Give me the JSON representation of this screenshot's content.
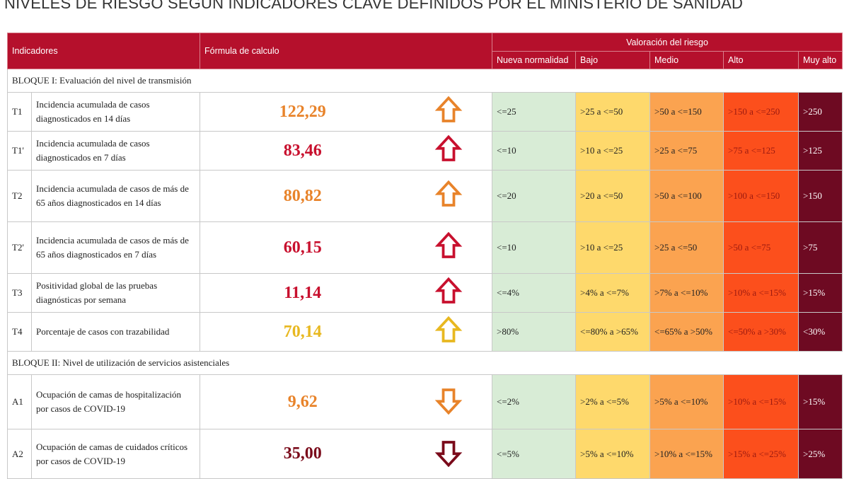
{
  "title": "NIVELES DE RIESGO SEGÚN INDICADORES CLAVE DEFINIDOS POR EL MINISTERIO DE SANIDAD",
  "header": {
    "indicadores": "Indicadores",
    "formula": "Fórmula de calculo",
    "valoracion": "Valoración del riesgo",
    "levels": [
      "Nueva normalidad",
      "Bajo",
      "Medio",
      "Alto",
      "Muy alto"
    ]
  },
  "level_colors": [
    "#d8ecd6",
    "#fed96c",
    "#fba350",
    "#fc4f1c",
    "#6e0a22"
  ],
  "blocks": [
    {
      "title": "BLOQUE I: Evaluación del nivel de transmisión",
      "rows": [
        {
          "code": "T1",
          "name": "Incidencia acumulada de casos diagnosticados en 14 días",
          "value": "122,29",
          "color": "#e8832a",
          "arrow": "up",
          "ranges": [
            "<=25",
            ">25 a <=50",
            ">50 a <=150",
            ">150 a <=250",
            ">250"
          ]
        },
        {
          "code": "T1'",
          "name": "Incidencia acumulada de casos diagnosticados en 7 días",
          "value": "83,46",
          "color": "#c8102e",
          "arrow": "up",
          "ranges": [
            "<=10",
            ">10 a <=25",
            ">25 a <=75",
            ">75 a <=125",
            ">125"
          ]
        },
        {
          "code": "T2",
          "name": "Incidencia acumulada de casos de más de 65 años diagnosticados en 14 días",
          "value": "80,82",
          "color": "#e8832a",
          "arrow": "up",
          "ranges": [
            "<=20",
            ">20 a <=50",
            ">50 a <=100",
            ">100 a <=150",
            ">150"
          ]
        },
        {
          "code": "T2'",
          "name": "Incidencia acumulada de casos de más de 65 años diagnosticados en 7 días",
          "value": "60,15",
          "color": "#c8102e",
          "arrow": "up",
          "ranges": [
            "<=10",
            ">10 a <=25",
            ">25 a <=50",
            ">50 a <=75",
            ">75"
          ]
        },
        {
          "code": "T3",
          "name": "Positividad global de las pruebas diagnósticas por semana",
          "value": "11,14",
          "color": "#c8102e",
          "arrow": "up",
          "ranges": [
            "<=4%",
            ">4% a <=7%",
            ">7% a <=10%",
            ">10% a <=15%",
            ">15%"
          ]
        },
        {
          "code": "T4",
          "name": "Porcentaje de casos con trazabilidad",
          "value": "70,14",
          "color": "#e8b820",
          "arrow": "up",
          "ranges": [
            ">80%",
            "<=80% a >65%",
            "<=65% a >50%",
            "<=50% a >30%",
            "<30%"
          ]
        }
      ]
    },
    {
      "title": "BLOQUE II: Nivel de utilización de servicios asistenciales",
      "rows": [
        {
          "code": "A1",
          "name": "Ocupación de camas de hospitalización por casos de COVID-19",
          "value": "9,62",
          "color": "#e8832a",
          "arrow": "down",
          "ranges": [
            "<=2%",
            ">2% a <=5%",
            ">5% a <=10%",
            ">10% a <=15%",
            ">15%"
          ]
        },
        {
          "code": "A2",
          "name": "Ocupación de camas de cuidados críticos por casos de COVID-19",
          "value": "35,00",
          "color": "#7a0a1a",
          "arrow": "down",
          "ranges": [
            "<=5%",
            ">5% a <=10%",
            ">10% a <=15%",
            ">15% a <=25%",
            ">25%"
          ]
        }
      ]
    }
  ]
}
